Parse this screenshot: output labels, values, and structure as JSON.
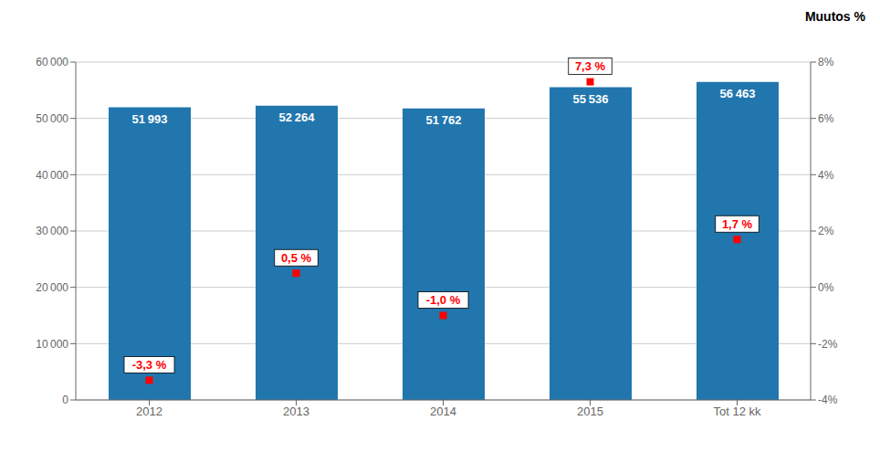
{
  "chart_data": {
    "type": "bar",
    "categories": [
      "2012",
      "2013",
      "2014",
      "2015",
      "Tot 12 kk"
    ],
    "series": [
      {
        "type": "bar",
        "color": "#2176AE",
        "values": [
          51993,
          52264,
          51762,
          55536,
          56463
        ],
        "value_labels": [
          "51 993",
          "52 264",
          "51 762",
          "55 536",
          "56 463"
        ],
        "data_labels": true
      },
      {
        "type": "scatter",
        "axis": "y2",
        "color": "red",
        "marker": "square",
        "values": [
          -3.3,
          0.5,
          -1.0,
          7.3,
          1.7
        ],
        "value_labels": [
          "-3,3 %",
          "0,5 %",
          "-1,0 %",
          "7,3 %",
          "1,7 %"
        ],
        "data_labels": true
      }
    ],
    "ylim": [
      0,
      60000
    ],
    "yticks": [
      0,
      {
        "value": 10000,
        "label": "10 000"
      },
      {
        "value": 20000,
        "label": "20 000"
      },
      {
        "value": 30000,
        "label": "30 000"
      },
      {
        "value": 40000,
        "label": "40 000"
      },
      {
        "value": 50000,
        "label": "50 000"
      },
      {
        "value": 60000,
        "label": "60 000"
      }
    ],
    "y2lim": [
      -4,
      8
    ],
    "y2ticks": [
      {
        "value": -4,
        "label": "-4%"
      },
      {
        "value": -2,
        "label": "-2%"
      },
      {
        "value": 0,
        "label": "0%"
      },
      {
        "value": 2,
        "label": "2%"
      },
      {
        "value": 4,
        "label": "4%"
      },
      {
        "value": 6,
        "label": "6%"
      },
      {
        "value": 8,
        "label": "8%"
      }
    ],
    "y2label": "Muutos %",
    "grid": true
  }
}
